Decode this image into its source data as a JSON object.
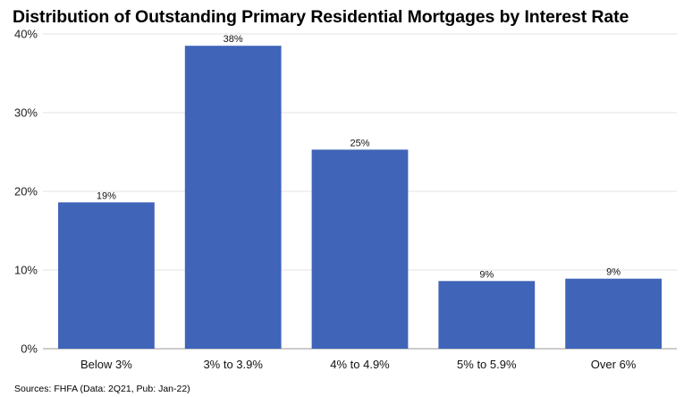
{
  "title": "Distribution of Outstanding Primary Residential Mortgages by Interest Rate",
  "source": "Sources: FHFA (Data: 2Q21, Pub: Jan-22)",
  "colors": {
    "bar": "#3f64b8",
    "grid": "#e3e3e3",
    "axis": "#9a9a9a"
  },
  "chart_data": {
    "type": "bar",
    "title": "Distribution of Outstanding Primary Residential Mortgages by Interest Rate",
    "xlabel": "",
    "ylabel": "",
    "categories": [
      "Below 3%",
      "3% to 3.9%",
      "4% to 4.9%",
      "5% to 5.9%",
      "Over 6%"
    ],
    "values": [
      18.6,
      38.5,
      25.3,
      8.6,
      8.9
    ],
    "data_labels": [
      "19%",
      "38%",
      "25%",
      "9%",
      "9%"
    ],
    "ylim": [
      0,
      40
    ],
    "yticks": [
      0,
      10,
      20,
      30,
      40
    ],
    "ytick_labels": [
      "0%",
      "10%",
      "20%",
      "30%",
      "40%"
    ],
    "grid": true,
    "legend": "none"
  }
}
